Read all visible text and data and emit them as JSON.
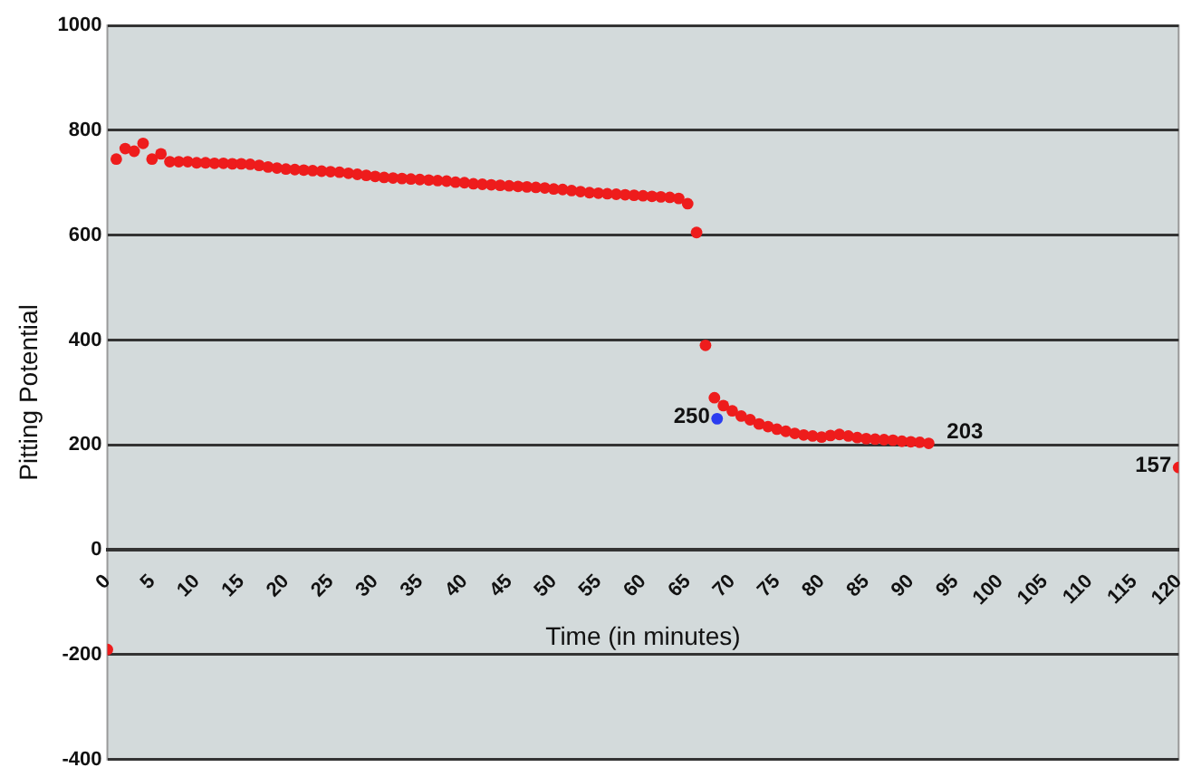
{
  "chart_data": {
    "type": "scatter",
    "xlabel": "Time (in minutes)",
    "ylabel": "Pitting Potential",
    "xlim": [
      0,
      120
    ],
    "xticks": [
      0,
      5,
      10,
      15,
      20,
      25,
      30,
      35,
      40,
      45,
      50,
      55,
      60,
      65,
      70,
      75,
      80,
      85,
      90,
      95,
      100,
      105,
      110,
      115,
      120
    ],
    "ylim": [
      -400,
      1000
    ],
    "yticks": [
      -400,
      -200,
      0,
      200,
      400,
      600,
      800,
      1000
    ],
    "grid": "y",
    "legend": false,
    "marker": "circle",
    "series": [
      {
        "color": "#ee1c1c",
        "x": [
          0,
          1,
          2,
          3,
          4,
          5,
          6,
          7,
          8,
          9,
          10,
          11,
          12,
          13,
          14,
          15,
          16,
          17,
          18,
          19,
          20,
          21,
          22,
          23,
          24,
          25,
          26,
          27,
          28,
          29,
          30,
          31,
          32,
          33,
          34,
          35,
          36,
          37,
          38,
          39,
          40,
          41,
          42,
          43,
          44,
          45,
          46,
          47,
          48,
          49,
          50,
          51,
          52,
          53,
          54,
          55,
          56,
          57,
          58,
          59,
          60,
          61,
          62,
          63,
          64,
          65,
          66,
          67,
          68,
          69,
          70,
          71,
          72,
          73,
          74,
          75,
          76,
          77,
          78,
          79,
          80,
          81,
          82,
          83,
          84,
          85,
          86,
          87,
          88,
          89,
          90,
          91,
          92,
          120
        ],
        "values": [
          -190,
          745,
          765,
          760,
          775,
          745,
          755,
          740,
          740,
          740,
          738,
          738,
          737,
          737,
          736,
          736,
          735,
          733,
          730,
          728,
          726,
          725,
          724,
          723,
          722,
          721,
          720,
          718,
          716,
          714,
          712,
          710,
          709,
          708,
          707,
          706,
          705,
          704,
          703,
          701,
          700,
          698,
          697,
          696,
          695,
          694,
          693,
          692,
          691,
          690,
          688,
          687,
          685,
          683,
          681,
          680,
          679,
          678,
          677,
          676,
          675,
          674,
          673,
          672,
          670,
          660,
          605,
          390,
          290,
          275,
          265,
          255,
          248,
          240,
          235,
          230,
          226,
          222,
          219,
          217,
          215,
          218,
          220,
          217,
          214,
          212,
          211,
          210,
          209,
          207,
          206,
          205,
          203,
          157
        ],
        "value_labels": [
          null,
          null,
          null,
          null,
          null,
          null,
          null,
          null,
          null,
          null,
          null,
          null,
          null,
          null,
          null,
          null,
          null,
          null,
          null,
          null,
          null,
          null,
          null,
          null,
          null,
          null,
          null,
          null,
          null,
          null,
          null,
          null,
          null,
          null,
          null,
          null,
          null,
          null,
          null,
          null,
          null,
          null,
          null,
          null,
          null,
          null,
          null,
          null,
          null,
          null,
          null,
          null,
          null,
          null,
          null,
          null,
          null,
          null,
          null,
          null,
          null,
          null,
          null,
          null,
          null,
          null,
          null,
          null,
          null,
          null,
          null,
          null,
          null,
          null,
          null,
          null,
          null,
          null,
          null,
          null,
          null,
          null,
          null,
          null,
          null,
          null,
          null,
          null,
          null,
          null,
          null,
          null,
          "203",
          "157"
        ]
      },
      {
        "color": "#2a3cf0",
        "x": [
          68.3
        ],
        "values": [
          250
        ],
        "value_labels": [
          "250"
        ]
      }
    ]
  }
}
